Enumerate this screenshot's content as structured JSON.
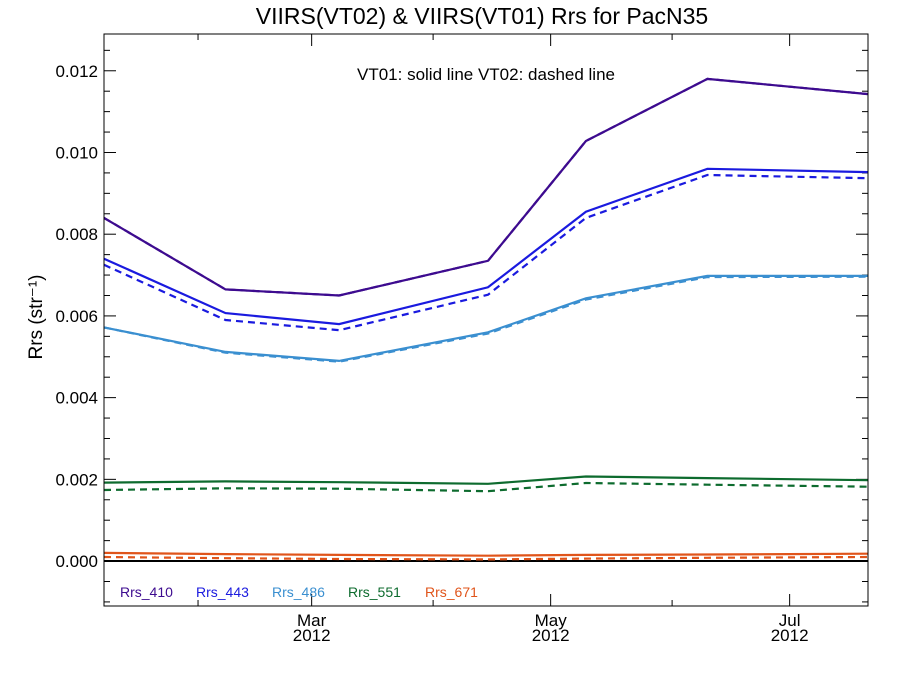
{
  "chart_data": {
    "type": "line",
    "title": "VIIRS(VT02) & VIIRS(VT01)  Rrs for PacN35",
    "ylabel": "Rrs (str⁻¹)",
    "annotation": "VT01: solid line   VT02: dashed line",
    "ylim": [
      -0.0011,
      0.0129
    ],
    "xlim": [
      "2012-01-08",
      "2012-07-21"
    ],
    "yticks": [
      "0.000",
      "0.002",
      "0.004",
      "0.006",
      "0.008",
      "0.010",
      "0.012"
    ],
    "xticks": [
      {
        "date": "2012-03-01",
        "month": "Mar",
        "year": "2012"
      },
      {
        "date": "2012-05-01",
        "month": "May",
        "year": "2012"
      },
      {
        "date": "2012-07-01",
        "month": "Jul",
        "year": "2012"
      }
    ],
    "x": [
      "2012-01-08",
      "2012-02-08",
      "2012-03-08",
      "2012-04-15",
      "2012-05-10",
      "2012-06-10",
      "2012-07-21"
    ],
    "zero_line": true,
    "series": [
      {
        "name": "Rrs_410",
        "color": "#3d0b8f",
        "vt01": [
          0.0084,
          0.00665,
          0.0065,
          0.00735,
          0.01028,
          0.0118,
          0.01143
        ],
        "vt02": [
          0.0084,
          0.00665,
          0.0065,
          0.00735,
          0.01028,
          0.0118,
          0.01143
        ]
      },
      {
        "name": "Rrs_443",
        "color": "#1a1adf",
        "vt01": [
          0.0074,
          0.00607,
          0.0058,
          0.0067,
          0.00855,
          0.0096,
          0.00952
        ],
        "vt02": [
          0.00725,
          0.0059,
          0.00565,
          0.00652,
          0.0084,
          0.00945,
          0.00937
        ]
      },
      {
        "name": "Rrs_486",
        "color": "#3a8fd0",
        "vt01": [
          0.00572,
          0.00512,
          0.0049,
          0.0056,
          0.00643,
          0.00698,
          0.00698
        ],
        "vt02": [
          0.00572,
          0.0051,
          0.00488,
          0.00557,
          0.0064,
          0.00695,
          0.00696
        ]
      },
      {
        "name": "Rrs_551",
        "color": "#0d6b2e",
        "vt01": [
          0.00192,
          0.00195,
          0.00193,
          0.00189,
          0.00207,
          0.00203,
          0.00198
        ],
        "vt02": [
          0.00174,
          0.00178,
          0.00177,
          0.00171,
          0.00191,
          0.00187,
          0.00182
        ]
      },
      {
        "name": "Rrs_671",
        "color": "#e0541a",
        "vt01": [
          0.0002,
          0.00017,
          0.00015,
          0.00013,
          0.00015,
          0.00016,
          0.00018
        ],
        "vt02": [
          0.0001,
          7e-05,
          5e-05,
          4e-05,
          6e-05,
          8e-05,
          0.0001
        ]
      }
    ]
  }
}
